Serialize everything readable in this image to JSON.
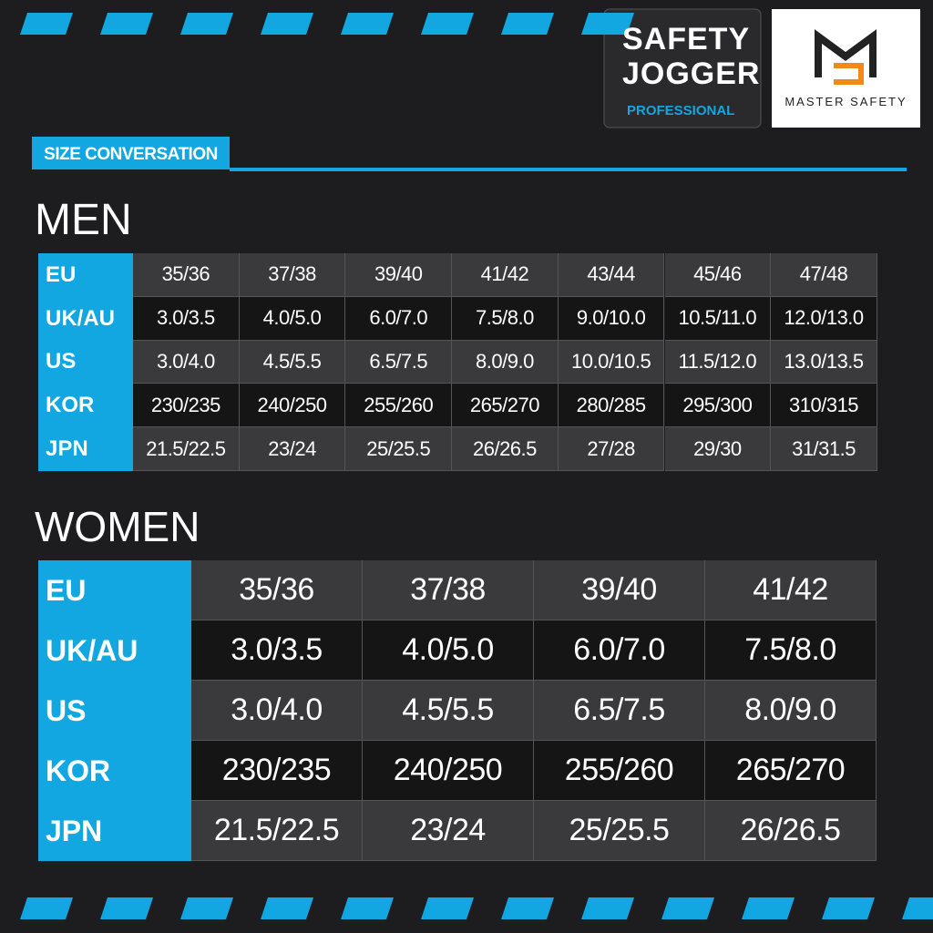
{
  "brand": {
    "name_line1": "SAFETY",
    "name_line2": "JOGGER",
    "tagline": "PROFESSIONAL",
    "partner": "MASTER SAFETY"
  },
  "section_label": "SIZE CONVERSATION",
  "men": {
    "title": "MEN",
    "rows": [
      {
        "label": "EU",
        "cells": [
          "35/36",
          "37/38",
          "39/40",
          "41/42",
          "43/44",
          "45/46",
          "47/48"
        ]
      },
      {
        "label": "UK/AU",
        "cells": [
          "3.0/3.5",
          "4.0/5.0",
          "6.0/7.0",
          "7.5/8.0",
          "9.0/10.0",
          "10.5/11.0",
          "12.0/13.0"
        ]
      },
      {
        "label": "US",
        "cells": [
          "3.0/4.0",
          "4.5/5.5",
          "6.5/7.5",
          "8.0/9.0",
          "10.0/10.5",
          "11.5/12.0",
          "13.0/13.5"
        ]
      },
      {
        "label": "KOR",
        "cells": [
          "230/235",
          "240/250",
          "255/260",
          "265/270",
          "280/285",
          "295/300",
          "310/315"
        ]
      },
      {
        "label": "JPN",
        "cells": [
          "21.5/22.5",
          "23/24",
          "25/25.5",
          "26/26.5",
          "27/28",
          "29/30",
          "31/31.5"
        ]
      }
    ]
  },
  "women": {
    "title": "WOMEN",
    "rows": [
      {
        "label": "EU",
        "cells": [
          "35/36",
          "37/38",
          "39/40",
          "41/42"
        ]
      },
      {
        "label": "UK/AU",
        "cells": [
          "3.0/3.5",
          "4.0/5.0",
          "6.0/7.0",
          "7.5/8.0"
        ]
      },
      {
        "label": "US",
        "cells": [
          "3.0/4.0",
          "4.5/5.5",
          "6.5/7.5",
          "8.0/9.0"
        ]
      },
      {
        "label": "KOR",
        "cells": [
          "230/235",
          "240/250",
          "255/260",
          "265/270"
        ]
      },
      {
        "label": "JPN",
        "cells": [
          "21.5/22.5",
          "23/24",
          "25/25.5",
          "26/26.5"
        ]
      }
    ]
  }
}
